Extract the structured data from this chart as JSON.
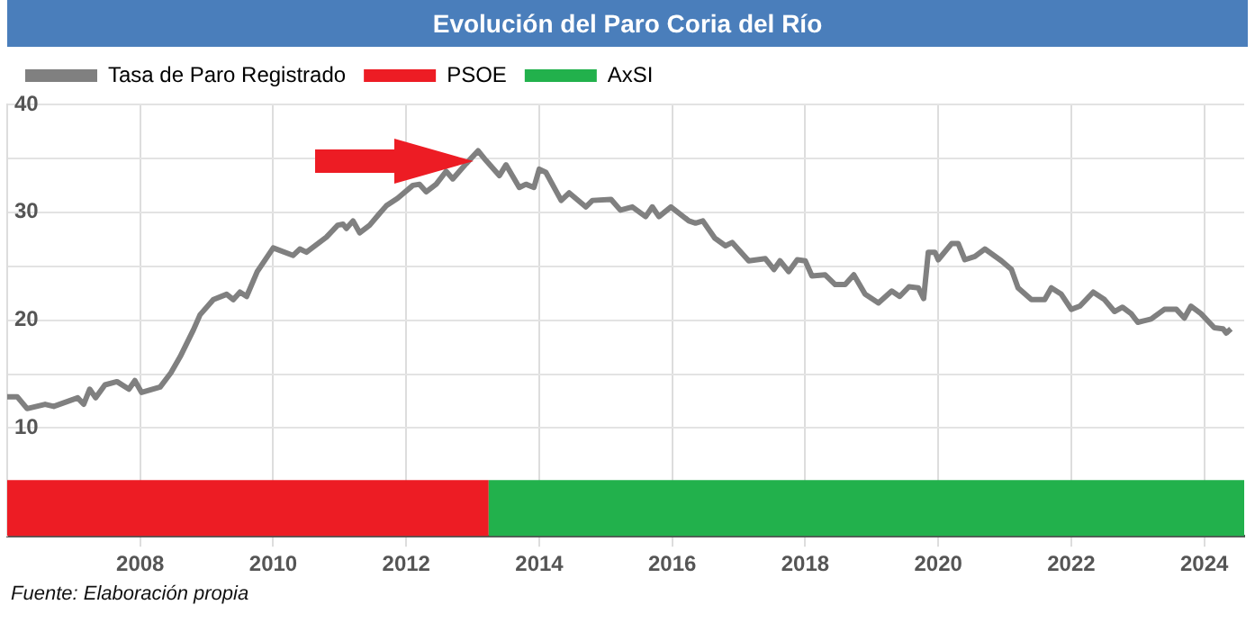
{
  "chart_data": {
    "type": "line",
    "title": "Evolución del Paro Coria del Río",
    "annotations": [
      "Fuente: Elaboración propia"
    ],
    "series": [
      {
        "name": "Tasa de Paro Registrado",
        "color": "#808080",
        "x": [
          2006.0,
          2006.15,
          2006.3,
          2006.57,
          2006.7,
          2007.06,
          2007.15,
          2007.24,
          2007.33,
          2007.47,
          2007.65,
          2007.83,
          2007.92,
          2008.02,
          2008.3,
          2008.46,
          2008.6,
          2008.8,
          2008.9,
          2009.1,
          2009.3,
          2009.4,
          2009.5,
          2009.6,
          2009.76,
          2010.0,
          2010.3,
          2010.4,
          2010.5,
          2010.8,
          2010.97,
          2011.05,
          2011.1,
          2011.2,
          2011.3,
          2011.45,
          2011.6,
          2011.7,
          2011.87,
          2012.1,
          2012.2,
          2012.3,
          2012.45,
          2012.6,
          2012.7,
          2012.9,
          2013.08,
          2013.2,
          2013.4,
          2013.5,
          2013.7,
          2013.8,
          2013.92,
          2014.0,
          2014.1,
          2014.33,
          2014.45,
          2014.7,
          2014.8,
          2015.08,
          2015.22,
          2015.4,
          2015.6,
          2015.7,
          2015.8,
          2015.98,
          2016.25,
          2016.35,
          2016.46,
          2016.64,
          2016.8,
          2016.9,
          2017.15,
          2017.4,
          2017.53,
          2017.62,
          2017.75,
          2017.88,
          2018.0,
          2018.1,
          2018.3,
          2018.45,
          2018.6,
          2018.73,
          2018.9,
          2019.1,
          2019.3,
          2019.42,
          2019.56,
          2019.7,
          2019.78,
          2019.85,
          2019.95,
          2020.0,
          2020.2,
          2020.3,
          2020.4,
          2020.55,
          2020.7,
          2020.95,
          2021.1,
          2021.2,
          2021.4,
          2021.6,
          2021.7,
          2021.85,
          2022.0,
          2022.13,
          2022.33,
          2022.5,
          2022.65,
          2022.77,
          2022.9,
          2023.0,
          2023.2,
          2023.4,
          2023.58,
          2023.7,
          2023.8,
          2023.95,
          2024.15,
          2024.28,
          2024.33,
          2024.4
        ],
        "values": [
          12.9,
          12.9,
          11.8,
          12.2,
          12.0,
          12.8,
          12.2,
          13.6,
          12.8,
          14.0,
          14.3,
          13.6,
          14.4,
          13.3,
          13.8,
          15.1,
          16.6,
          19.1,
          20.5,
          21.9,
          22.4,
          21.9,
          22.6,
          22.2,
          24.5,
          26.7,
          26.0,
          26.6,
          26.3,
          27.7,
          28.8,
          28.9,
          28.5,
          29.2,
          28.1,
          28.8,
          29.9,
          30.6,
          31.3,
          32.5,
          32.6,
          31.9,
          32.6,
          33.8,
          33.1,
          34.5,
          35.7,
          34.8,
          33.4,
          34.4,
          32.3,
          32.6,
          32.3,
          34.0,
          33.7,
          31.1,
          31.8,
          30.5,
          31.1,
          31.2,
          30.2,
          30.5,
          29.6,
          30.5,
          29.6,
          30.5,
          29.2,
          29.0,
          29.2,
          27.6,
          26.9,
          27.2,
          25.5,
          25.7,
          24.7,
          25.5,
          24.5,
          25.6,
          25.5,
          24.1,
          24.2,
          23.3,
          23.3,
          24.2,
          22.4,
          21.6,
          22.7,
          22.2,
          23.1,
          23.0,
          22.0,
          26.3,
          26.3,
          25.6,
          27.1,
          27.1,
          25.6,
          25.9,
          26.6,
          25.5,
          24.7,
          23.0,
          21.9,
          21.9,
          23.0,
          22.4,
          21.0,
          21.3,
          22.6,
          21.9,
          20.8,
          21.2,
          20.6,
          19.8,
          20.1,
          21.0,
          21.0,
          20.2,
          21.3,
          20.6,
          19.3,
          19.2,
          18.8,
          19.2
        ]
      }
    ],
    "bands": [
      {
        "axis": "x",
        "from": 2006.0,
        "to": 2013.24,
        "label": "PSOE",
        "color": "#ed1c24"
      },
      {
        "axis": "x",
        "from": 2013.24,
        "to": 2024.6,
        "label": "AxSI",
        "color": "#22b14c"
      }
    ],
    "xlim": [
      2006.0,
      2024.6
    ],
    "xticks": [
      2008,
      2010,
      2012,
      2014,
      2016,
      2018,
      2020,
      2022,
      2024
    ],
    "ylim": [
      0,
      40
    ],
    "yticks": [
      10,
      {
        "value": 15,
        "label": null
      },
      20,
      {
        "value": 25,
        "label": null
      },
      30,
      {
        "value": 35,
        "label": null
      },
      40
    ],
    "grid": true,
    "legend": "top left",
    "marker": "none",
    "line_style": "solid"
  }
}
